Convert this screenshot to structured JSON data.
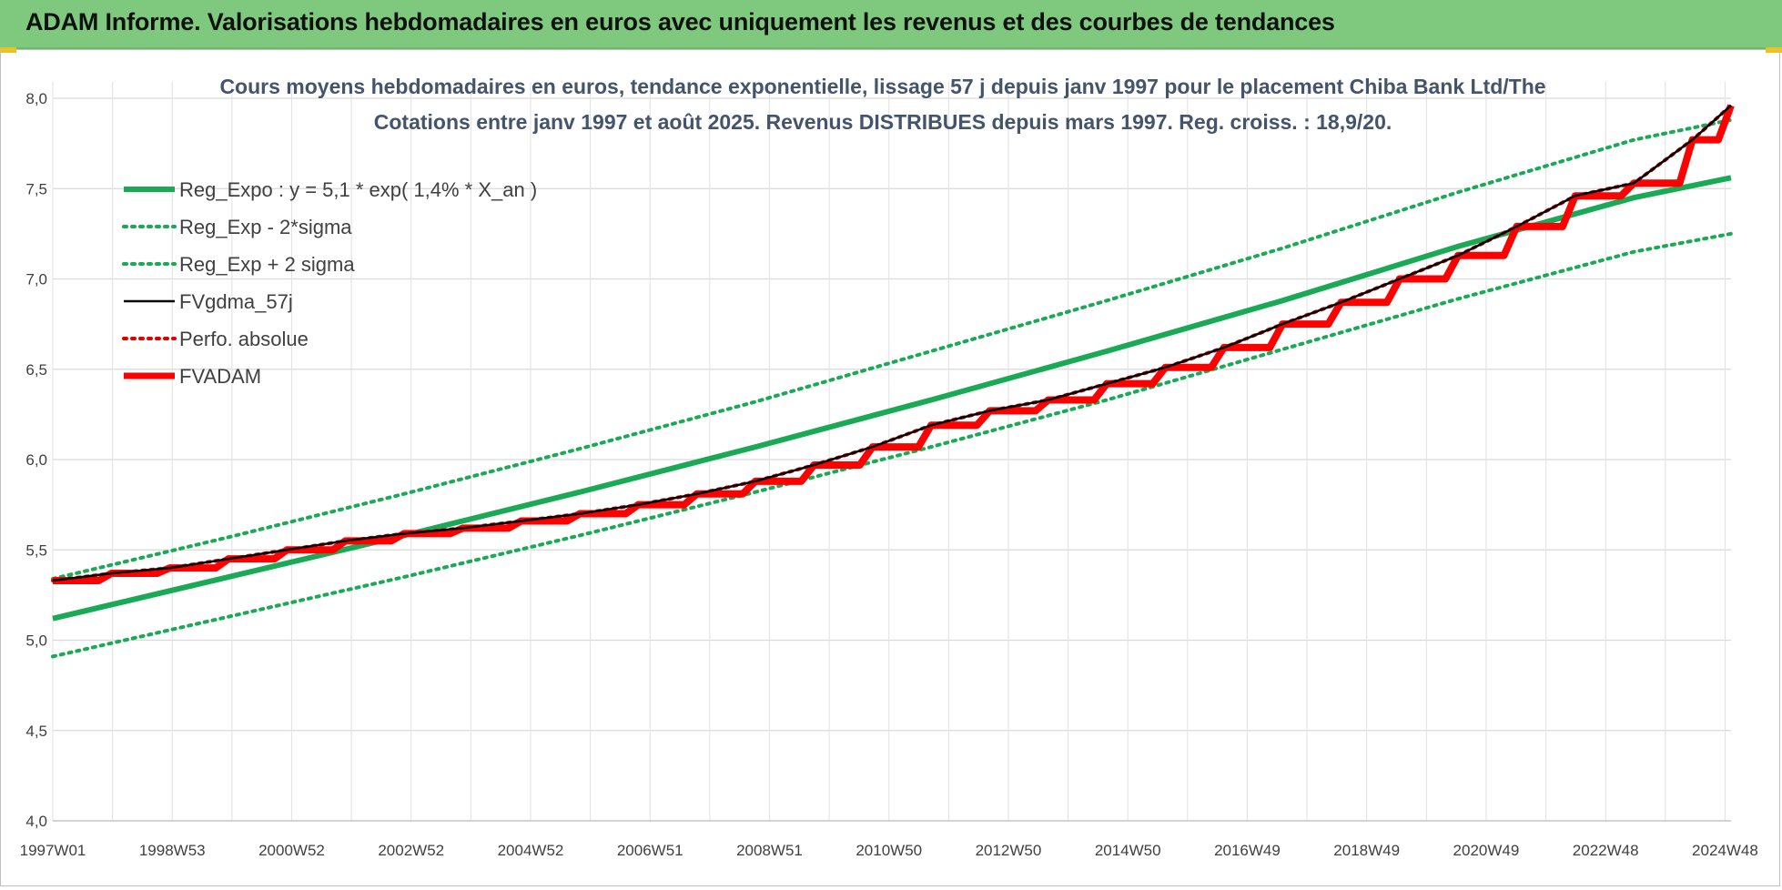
{
  "header": {
    "title": "ADAM Informe. Valorisations hebdomadaires en euros avec uniquement les revenus et des courbes de tendances"
  },
  "chart_data": {
    "type": "line",
    "title_lines": [
      "Cours moyens hebdomadaires en euros, tendance exponentielle, lissage 57 j depuis janv 1997 pour le placement Chiba Bank Ltd/The",
      "Cotations entre janv 1997 et août 2025.  Revenus DISTRIBUES depuis mars 1997. Reg. croiss. : 18,9/20."
    ],
    "x_ticks": [
      "1997W01",
      "1998W53",
      "2000W52",
      "2002W52",
      "2004W52",
      "2006W51",
      "2008W51",
      "2010W50",
      "2012W50",
      "2014W50",
      "2016W49",
      "2018W49",
      "2020W49",
      "2022W48",
      "2024W48"
    ],
    "x_range": [
      "1997W01",
      "2025W35"
    ],
    "ylim": [
      4.0,
      8.0
    ],
    "y_ticks": [
      "4,0",
      "4,5",
      "5,0",
      "5,5",
      "6,0",
      "6,5",
      "7,0",
      "7,5",
      "8,0"
    ],
    "grid": true,
    "legend_position": "top-left",
    "series": [
      {
        "name": "Reg_Expo : y = 5,1 * exp( 1,4% *  X_an )",
        "color": "#1aaa55",
        "style": "solid-thick",
        "x": [
          1997.0,
          2000.0,
          2003.0,
          2006.0,
          2009.0,
          2012.0,
          2015.0,
          2018.0,
          2021.0,
          2024.0,
          2025.66
        ],
        "values": [
          5.12,
          5.35,
          5.58,
          5.82,
          6.07,
          6.33,
          6.6,
          6.88,
          7.18,
          7.45,
          7.56
        ]
      },
      {
        "name": "Reg_Exp - 2*sigma",
        "color": "#1aaa55",
        "style": "dotted",
        "x": [
          1997.0,
          2000.0,
          2003.0,
          2006.0,
          2009.0,
          2012.0,
          2015.0,
          2018.0,
          2021.0,
          2024.0,
          2025.66
        ],
        "values": [
          4.91,
          5.13,
          5.35,
          5.58,
          5.82,
          6.07,
          6.33,
          6.61,
          6.89,
          7.15,
          7.25
        ]
      },
      {
        "name": "Reg_Exp + 2 sigma",
        "color": "#1aaa55",
        "style": "dotted",
        "x": [
          1997.0,
          2000.0,
          2003.0,
          2006.0,
          2009.0,
          2012.0,
          2015.0,
          2018.0,
          2021.0,
          2024.0,
          2025.66
        ],
        "values": [
          5.34,
          5.57,
          5.81,
          6.06,
          6.32,
          6.6,
          6.88,
          7.17,
          7.48,
          7.77,
          7.88
        ]
      },
      {
        "name": "FVgdma_57j",
        "color": "#000000",
        "style": "solid",
        "x": [
          1997.0,
          1998.0,
          1999.0,
          2000.0,
          2001.0,
          2002.0,
          2003.0,
          2004.0,
          2005.0,
          2006.0,
          2007.0,
          2008.0,
          2009.0,
          2010.0,
          2011.0,
          2012.0,
          2013.0,
          2014.0,
          2015.0,
          2016.0,
          2017.0,
          2018.0,
          2019.0,
          2020.0,
          2021.0,
          2022.0,
          2023.0,
          2024.0,
          2025.0,
          2025.66
        ],
        "values": [
          5.33,
          5.37,
          5.4,
          5.45,
          5.5,
          5.55,
          5.59,
          5.62,
          5.66,
          5.7,
          5.75,
          5.81,
          5.88,
          5.97,
          6.07,
          6.19,
          6.27,
          6.33,
          6.42,
          6.51,
          6.62,
          6.75,
          6.87,
          7.0,
          7.13,
          7.29,
          7.46,
          7.53,
          7.77,
          7.96
        ]
      },
      {
        "name": "Perfo. absolue",
        "color": "#e00000",
        "style": "dotted",
        "x": [
          1997.0,
          1998.0,
          1999.0,
          2000.0,
          2001.0,
          2002.0,
          2003.0,
          2004.0,
          2005.0,
          2006.0,
          2007.0,
          2008.0,
          2009.0,
          2010.0,
          2011.0,
          2012.0,
          2013.0,
          2014.0,
          2015.0,
          2016.0,
          2017.0,
          2018.0,
          2019.0,
          2020.0,
          2021.0,
          2022.0,
          2023.0,
          2024.0,
          2025.0,
          2025.66
        ],
        "values": [
          5.33,
          5.37,
          5.4,
          5.45,
          5.5,
          5.55,
          5.59,
          5.62,
          5.66,
          5.7,
          5.75,
          5.81,
          5.88,
          5.97,
          6.07,
          6.19,
          6.27,
          6.33,
          6.42,
          6.51,
          6.62,
          6.75,
          6.87,
          7.0,
          7.13,
          7.29,
          7.46,
          7.53,
          7.77,
          7.96
        ]
      },
      {
        "name": "FVADAM",
        "color": "#ff0000",
        "style": "step-thick",
        "x": [
          1997.0,
          1998.0,
          1999.0,
          2000.0,
          2001.0,
          2002.0,
          2003.0,
          2004.0,
          2005.0,
          2006.0,
          2007.0,
          2008.0,
          2009.0,
          2010.0,
          2011.0,
          2012.0,
          2013.0,
          2014.0,
          2015.0,
          2016.0,
          2017.0,
          2018.0,
          2019.0,
          2020.0,
          2021.0,
          2022.0,
          2023.0,
          2024.0,
          2025.0,
          2025.66
        ],
        "values": [
          5.33,
          5.37,
          5.4,
          5.45,
          5.5,
          5.55,
          5.59,
          5.62,
          5.66,
          5.7,
          5.75,
          5.81,
          5.88,
          5.97,
          6.07,
          6.19,
          6.27,
          6.33,
          6.42,
          6.51,
          6.62,
          6.75,
          6.87,
          7.0,
          7.13,
          7.29,
          7.46,
          7.53,
          7.77,
          7.96
        ]
      }
    ]
  }
}
